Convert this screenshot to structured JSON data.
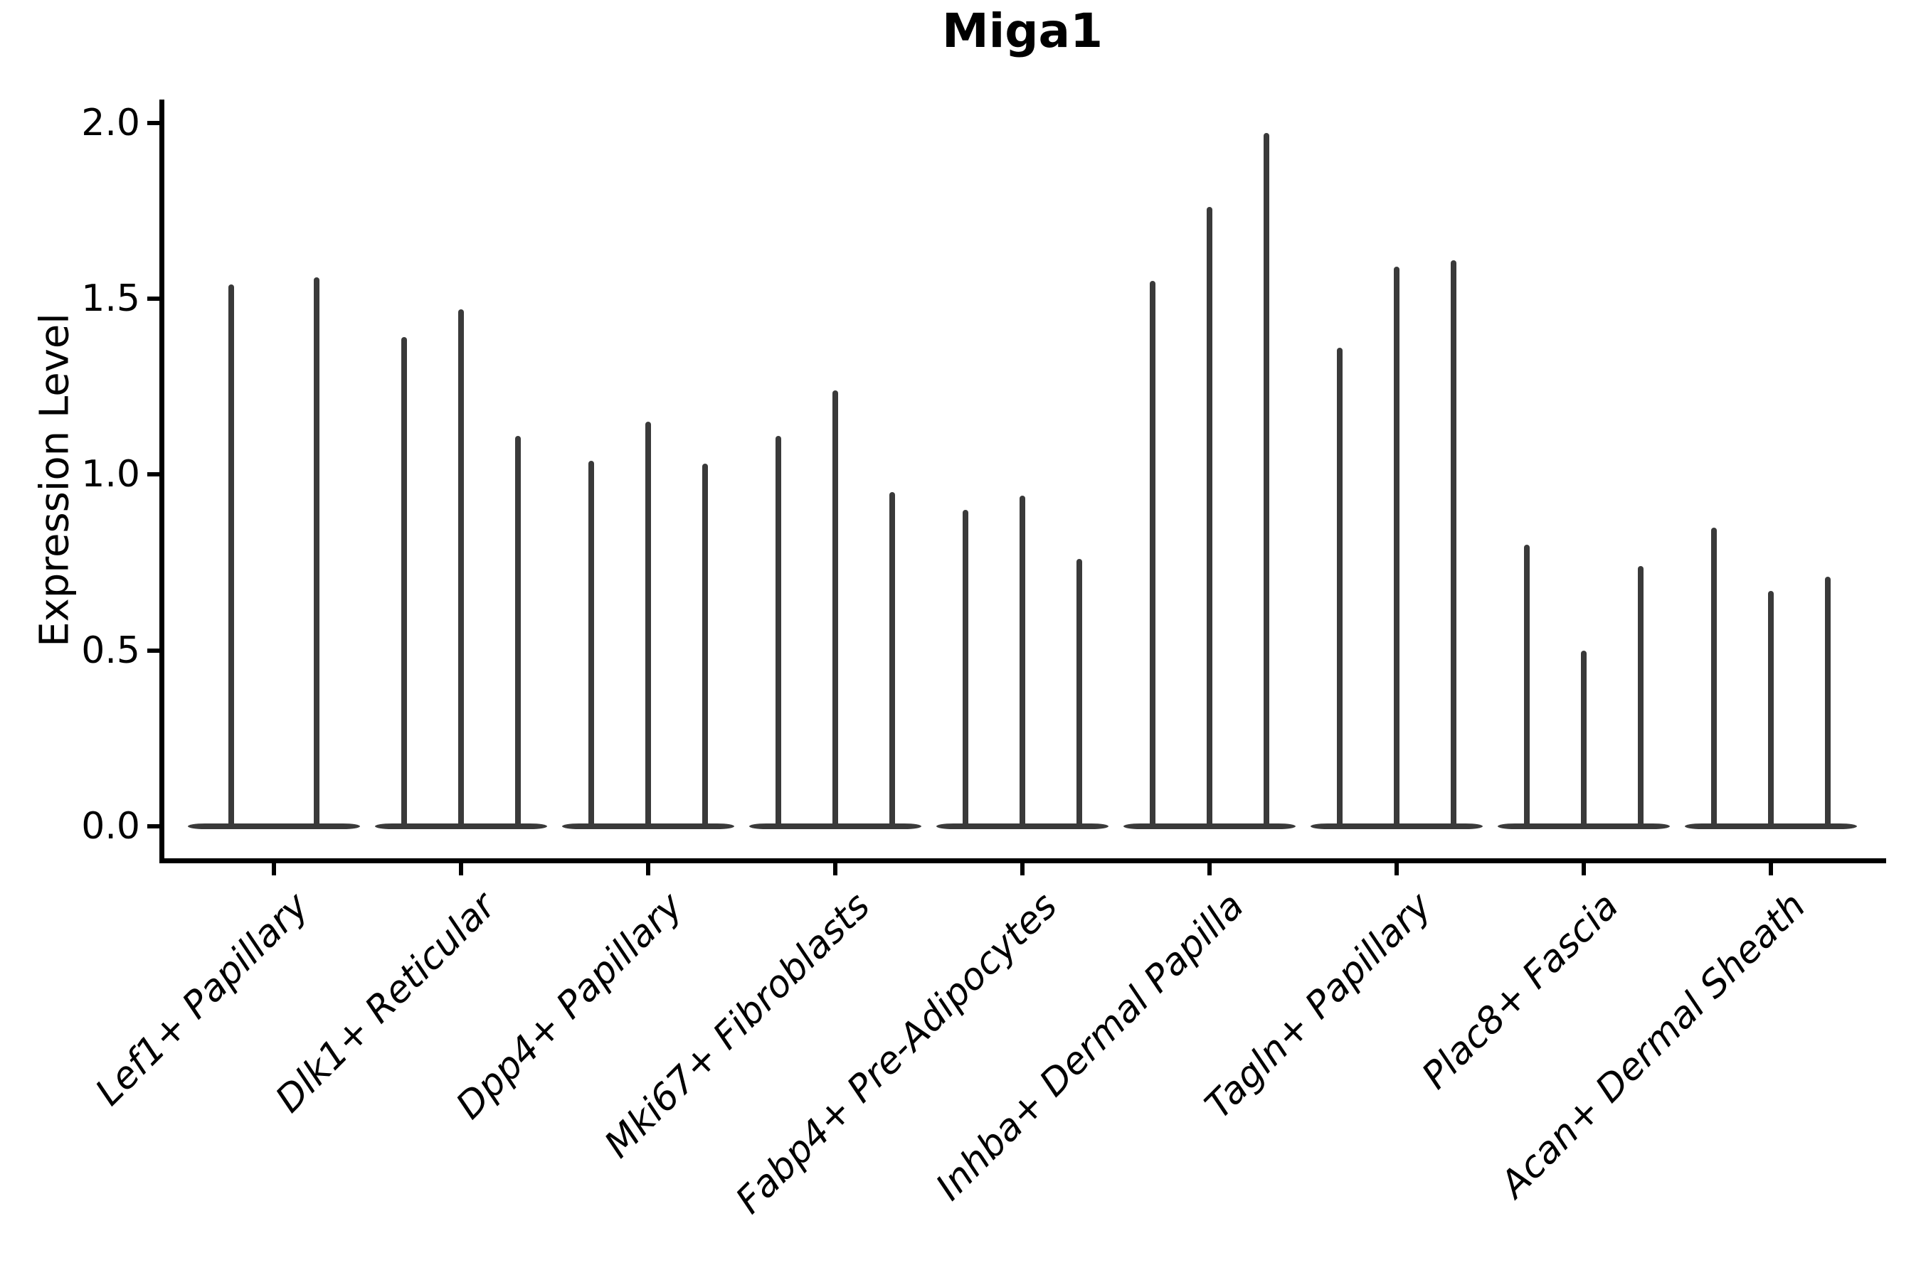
{
  "title": "Miga1",
  "colors": {
    "violin": "#3a3a3a",
    "axis": "#000000",
    "text": "#000000",
    "background": "#ffffff"
  },
  "chart_data": {
    "type": "violin",
    "title": "Miga1",
    "xlabel": "",
    "ylabel": "Expression Level",
    "yticks": [
      0.0,
      0.5,
      1.0,
      1.5,
      2.0
    ],
    "ylim": [
      -0.1,
      2.07
    ],
    "grid": false,
    "legend": "none",
    "x_tick_label_rotation": 45,
    "description": "Violin plot of Miga1 expression per fibroblast cluster; each cluster shows 2-3 very thin violins (samples) with bulk of density at 0 and a narrow spike up to the maximum expression value.",
    "categories": [
      "Lef1+ Papillary",
      "Dlk1+ Reticular",
      "Dpp4+ Papillary",
      "Mki67+ Fibroblasts",
      "Fabp4+ Pre-Adipocytes",
      "Inhba+ Dermal Papilla",
      "Tagln+ Papillary",
      "Plac8+ Fascia",
      "Acan+ Dermal Sheath"
    ],
    "groups": [
      {
        "label": "Lef1+ Papillary",
        "violin_max_values": [
          1.54,
          1.56
        ]
      },
      {
        "label": "Dlk1+ Reticular",
        "violin_max_values": [
          1.39,
          1.47,
          1.11
        ]
      },
      {
        "label": "Dpp4+ Papillary",
        "violin_max_values": [
          1.04,
          1.15,
          1.03
        ]
      },
      {
        "label": "Mki67+ Fibroblasts",
        "violin_max_values": [
          1.11,
          1.24,
          0.95
        ]
      },
      {
        "label": "Fabp4+ Pre-Adipocytes",
        "violin_max_values": [
          0.9,
          0.94,
          0.76
        ]
      },
      {
        "label": "Inhba+ Dermal Papilla",
        "violin_max_values": [
          1.55,
          1.76,
          1.97
        ]
      },
      {
        "label": "Tagln+ Papillary",
        "violin_max_values": [
          1.36,
          1.59,
          1.61
        ]
      },
      {
        "label": "Plac8+ Fascia",
        "violin_max_values": [
          0.8,
          0.5,
          0.74
        ]
      },
      {
        "label": "Acan+ Dermal Sheath",
        "violin_max_values": [
          0.85,
          0.67,
          0.71
        ]
      }
    ]
  }
}
